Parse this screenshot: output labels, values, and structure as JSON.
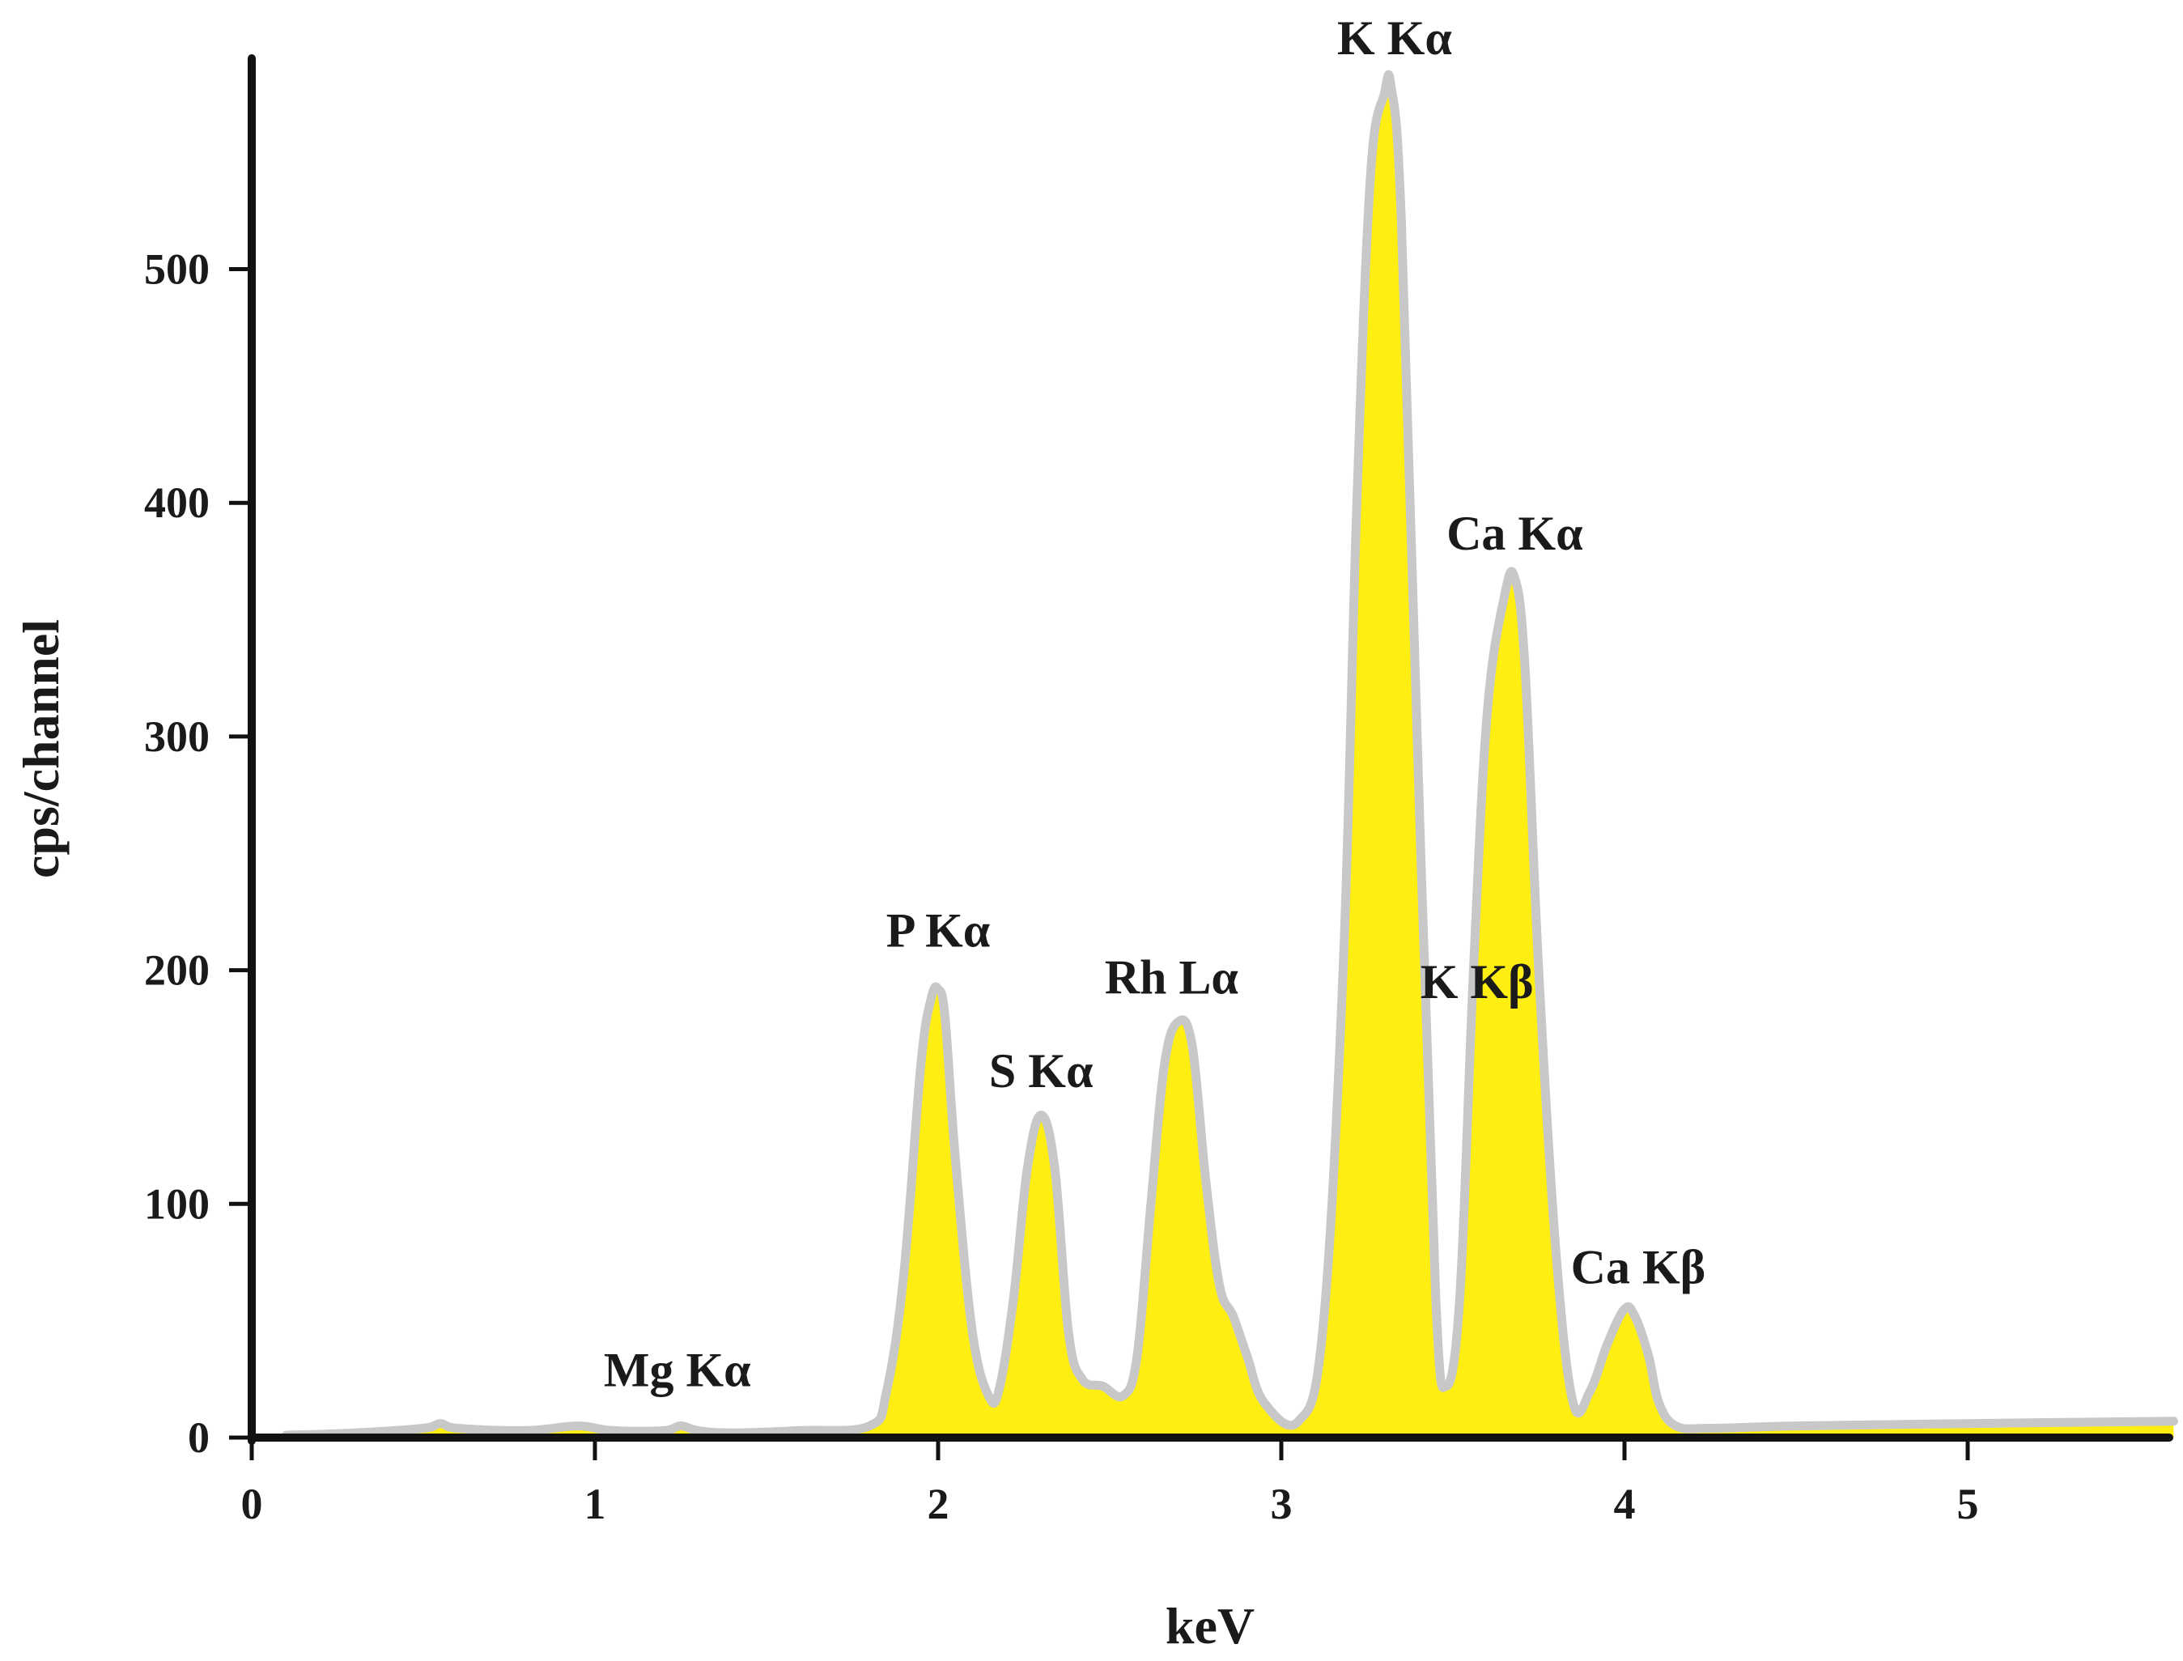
{
  "chart_data": {
    "type": "area",
    "title": "",
    "xlabel": "keV",
    "ylabel": "cps/channel",
    "xlim": [
      0,
      5.6
    ],
    "ylim": [
      0,
      590
    ],
    "x_ticks": [
      "0",
      "1",
      "2",
      "3",
      "4",
      "5"
    ],
    "y_ticks": [
      "0",
      "100",
      "200",
      "300",
      "400",
      "500"
    ],
    "grid": false,
    "fill_color": "#ffee11",
    "line_color": "#c8c8c8",
    "series": [
      {
        "x": [
          0.1,
          0.3,
          0.5,
          0.55,
          0.6,
          0.8,
          0.95,
          1.05,
          1.2,
          1.25,
          1.3,
          1.4,
          1.6,
          1.8,
          1.85,
          1.9,
          1.95,
          1.98,
          2.0,
          2.02,
          2.05,
          2.1,
          2.15,
          2.18,
          2.22,
          2.26,
          2.3,
          2.34,
          2.38,
          2.42,
          2.48,
          2.54,
          2.58,
          2.62,
          2.66,
          2.7,
          2.74,
          2.78,
          2.82,
          2.86,
          2.9,
          2.95,
          3.05,
          3.12,
          3.18,
          3.22,
          3.26,
          3.3,
          3.32,
          3.35,
          3.4,
          3.45,
          3.48,
          3.52,
          3.56,
          3.6,
          3.65,
          3.68,
          3.71,
          3.75,
          3.8,
          3.85,
          3.9,
          3.95,
          4.0,
          4.03,
          4.07,
          4.1,
          4.15,
          4.25,
          4.5,
          5.0,
          5.6
        ],
        "y": [
          1,
          2,
          4,
          6,
          4,
          3,
          5,
          3,
          3,
          5,
          3,
          2,
          3,
          5,
          20,
          70,
          160,
          188,
          192,
          180,
          120,
          45,
          17,
          22,
          60,
          115,
          138,
          115,
          45,
          25,
          22,
          18,
          35,
          100,
          160,
          178,
          168,
          110,
          65,
          52,
          35,
          15,
          7,
          45,
          200,
          400,
          540,
          575,
          578,
          520,
          280,
          60,
          22,
          60,
          200,
          310,
          360,
          368,
          330,
          200,
          80,
          15,
          20,
          40,
          55,
          52,
          35,
          15,
          5,
          4,
          5,
          6,
          7
        ]
      }
    ],
    "annotations": [
      {
        "text": "Mg Kα",
        "x": 1.24,
        "y": 22
      },
      {
        "text": "P Kα",
        "x": 2.0,
        "y": 210
      },
      {
        "text": "S Kα",
        "x": 2.3,
        "y": 150
      },
      {
        "text": "Rh Lα",
        "x": 2.68,
        "y": 190
      },
      {
        "text": "K Kα",
        "x": 3.33,
        "y": 592
      },
      {
        "text": "K Kβ",
        "x": 3.57,
        "y": 188
      },
      {
        "text": "Ca Kα",
        "x": 3.68,
        "y": 380
      },
      {
        "text": "Ca Kβ",
        "x": 4.04,
        "y": 66
      }
    ]
  }
}
